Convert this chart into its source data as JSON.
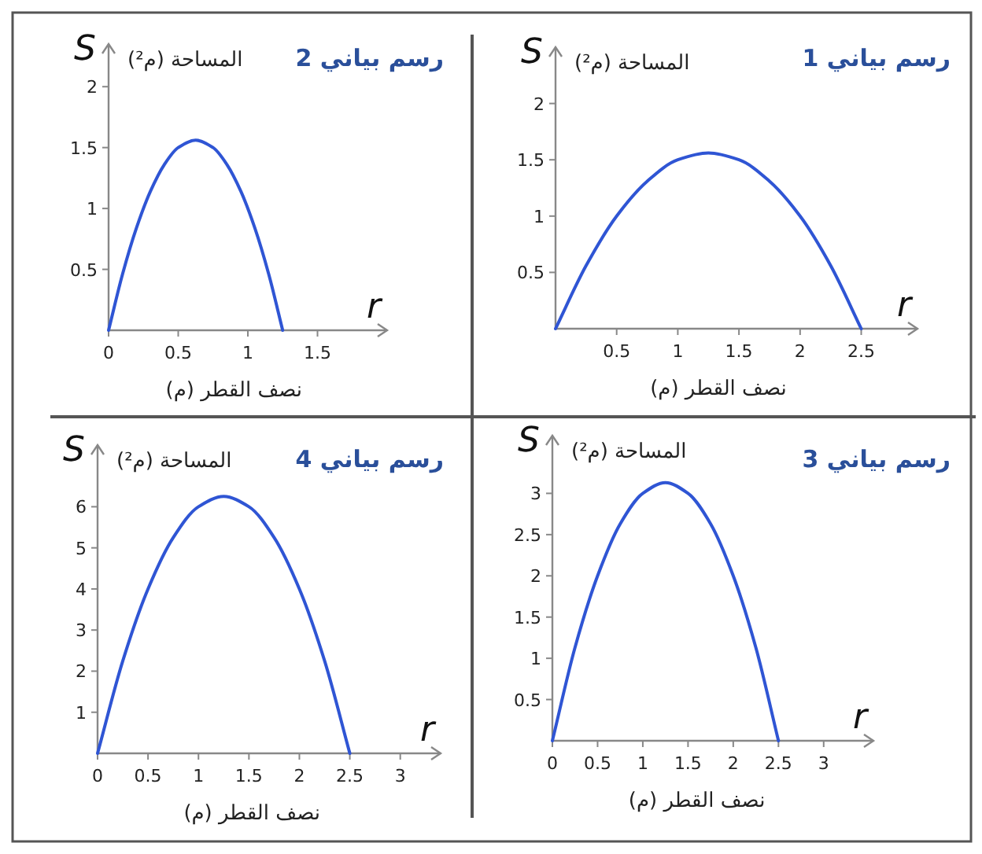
{
  "chart_data": [
    {
      "type": "line",
      "title": "رسم بياني 2",
      "xlabel": "r",
      "ylabel": "S",
      "annotations": [
        "المساحة (م²)",
        "نصف القطر (م)"
      ],
      "xlim": [
        0,
        2
      ],
      "ylim": [
        0,
        2.35
      ],
      "xticks": [
        0,
        0.5,
        1,
        1.5
      ],
      "yticks": [
        0.5,
        1,
        1.5,
        2
      ],
      "grid": false,
      "marker": "none",
      "line_style": "solid",
      "series": [
        {
          "color": "#2f55d4",
          "x": [
            0,
            0.1,
            0.2,
            0.3,
            0.4,
            0.5,
            0.625,
            0.75,
            0.85,
            0.95,
            1.05,
            1.15,
            1.25
          ],
          "values": [
            0,
            0.46,
            0.84,
            1.14,
            1.36,
            1.5,
            1.56,
            1.5,
            1.36,
            1.14,
            0.84,
            0.46,
            0
          ]
        }
      ]
    },
    {
      "type": "line",
      "title": "رسم بياني 1",
      "xlabel": "r",
      "ylabel": "S",
      "annotations": [
        "المساحة (م²)",
        "نصف القطر (م)"
      ],
      "xlim": [
        0,
        2.96
      ],
      "ylim": [
        0,
        2.5
      ],
      "xticks": [
        0.5,
        1,
        1.5,
        2,
        2.5
      ],
      "yticks": [
        0.5,
        1,
        1.5,
        2
      ],
      "grid": false,
      "marker": "none",
      "line_style": "solid",
      "series": [
        {
          "color": "#2f55d4",
          "x": [
            0,
            0.25,
            0.5,
            0.75,
            1,
            1.25,
            1.5,
            1.75,
            2,
            2.25,
            2.5
          ],
          "values": [
            0,
            0.56,
            1,
            1.31,
            1.5,
            1.56,
            1.5,
            1.31,
            1,
            0.56,
            0
          ]
        }
      ]
    },
    {
      "type": "line",
      "title": "رسم بياني 4",
      "xlabel": "r",
      "ylabel": "S",
      "annotations": [
        "المساحة (م²)",
        "نصف القطر (م)"
      ],
      "xlim": [
        0,
        3.4
      ],
      "ylim": [
        0,
        7.5
      ],
      "xticks": [
        0,
        0.5,
        1,
        1.5,
        2,
        2.5,
        3
      ],
      "yticks": [
        1,
        2,
        3,
        4,
        5,
        6
      ],
      "grid": false,
      "marker": "none",
      "line_style": "solid",
      "series": [
        {
          "color": "#2f55d4",
          "x": [
            0,
            0.25,
            0.5,
            0.75,
            1,
            1.25,
            1.5,
            1.75,
            2,
            2.25,
            2.5
          ],
          "values": [
            0,
            2.25,
            4,
            5.25,
            6,
            6.25,
            6,
            5.25,
            4,
            2.25,
            0
          ]
        }
      ]
    },
    {
      "type": "line",
      "title": "رسم بياني 3",
      "xlabel": "r",
      "ylabel": "S",
      "annotations": [
        "المساحة (م²)",
        "نصف القطر (م)"
      ],
      "xlim": [
        0,
        3.55
      ],
      "ylim": [
        0,
        3.7
      ],
      "xticks": [
        0,
        0.5,
        1,
        1.5,
        2,
        2.5,
        3
      ],
      "yticks": [
        0.5,
        1,
        1.5,
        2,
        2.5,
        3
      ],
      "grid": false,
      "marker": "none",
      "line_style": "solid",
      "series": [
        {
          "color": "#2f55d4",
          "x": [
            0,
            0.25,
            0.5,
            0.75,
            1,
            1.25,
            1.5,
            1.75,
            2,
            2.25,
            2.5
          ],
          "values": [
            0,
            1.13,
            2,
            2.63,
            3,
            3.13,
            3,
            2.63,
            2,
            1.13,
            0
          ]
        }
      ]
    }
  ]
}
